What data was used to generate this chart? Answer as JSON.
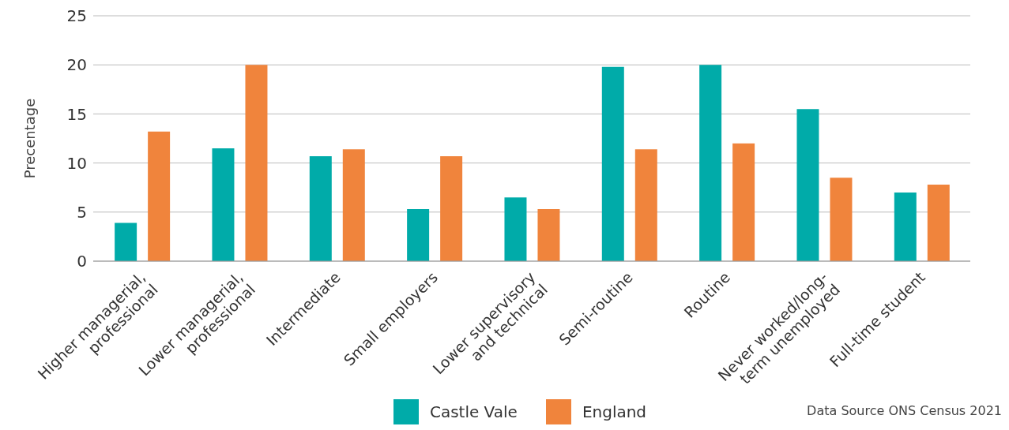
{
  "chart_data": {
    "type": "bar",
    "ylabel": "Precentage",
    "categories": [
      "Higher managerial, professional",
      "Lower managerial, professional",
      "Intermediate",
      "Small employers",
      "Lower supervisory and technical",
      "Semi-routine",
      "Routine",
      "Never worked/long-term unemployed",
      "Full-time student"
    ],
    "series": [
      {
        "name": "Castle Vale",
        "color": "#00aba9",
        "values": [
          3.9,
          11.5,
          10.7,
          5.3,
          6.5,
          19.8,
          20.0,
          15.5,
          7.0
        ]
      },
      {
        "name": "England",
        "color": "#f0843c",
        "values": [
          13.2,
          20.0,
          11.4,
          10.7,
          5.3,
          11.4,
          12.0,
          8.5,
          7.8
        ]
      }
    ],
    "ylim": [
      0,
      25
    ],
    "yticks": [
      0,
      5,
      10,
      15,
      20,
      25
    ],
    "grid": "y",
    "legend": "bottom",
    "annotations": [
      "Data Source ONS Census 2021"
    ]
  }
}
